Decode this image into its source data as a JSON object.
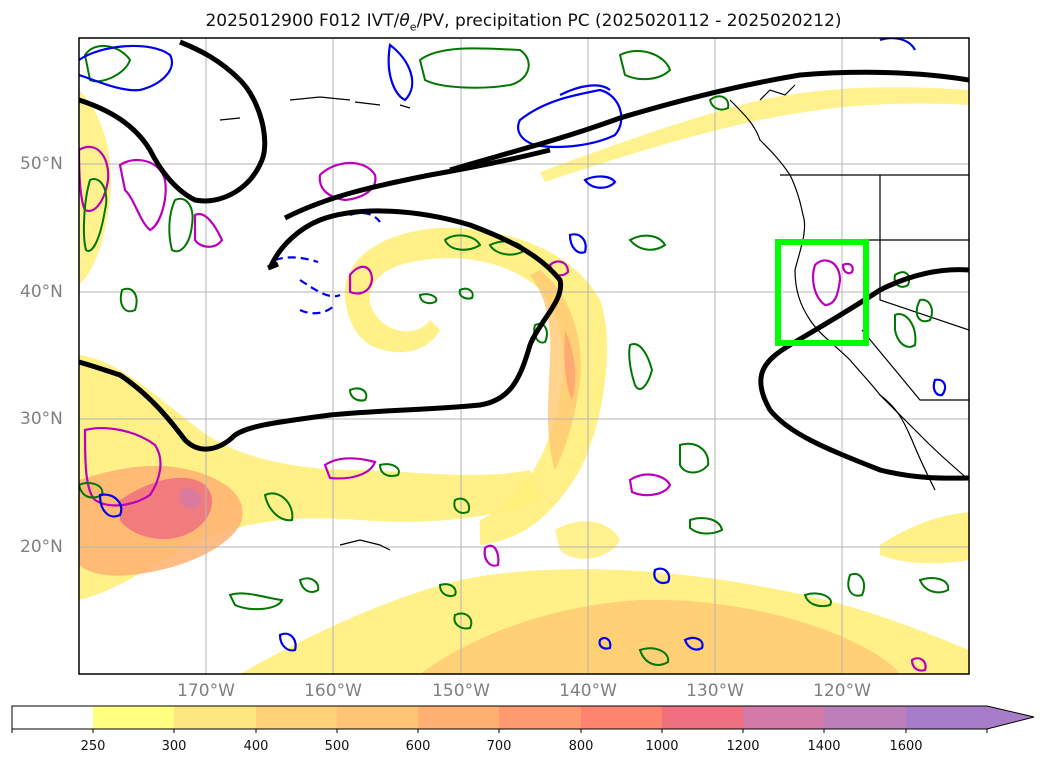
{
  "figure": {
    "title_prefix": "2025012900 F012 IVT/",
    "title_theta": "θ",
    "title_sub": "e",
    "title_suffix": "/PV, precipitation PC (2025020112 - 2025020212)"
  },
  "map": {
    "lat_labels": [
      "50°N",
      "40°N",
      "30°N",
      "20°N"
    ],
    "lon_labels": [
      "170°W",
      "160°W",
      "150°W",
      "140°W",
      "130°W",
      "120°W"
    ],
    "grid": true,
    "colors": {
      "ivt_contour": "#000000",
      "pv_positive": "#0000ee",
      "theta_e": "#007700",
      "precip_pc": "#bb00bb",
      "target_box": "#00ff00",
      "coastline": "#000000"
    }
  },
  "colorbar": {
    "ticks": [
      "250",
      "300",
      "400",
      "500",
      "600",
      "700",
      "800",
      "1000",
      "1200",
      "1400",
      "1600"
    ],
    "colors": [
      "#ffffff",
      "#ffff80",
      "#ffe780",
      "#ffd27a",
      "#ffc474",
      "#ffb070",
      "#ff9a70",
      "#ff8470",
      "#f07080",
      "#d47aa8",
      "#bd7ebc",
      "#a77dc9"
    ],
    "extend": "max"
  }
}
